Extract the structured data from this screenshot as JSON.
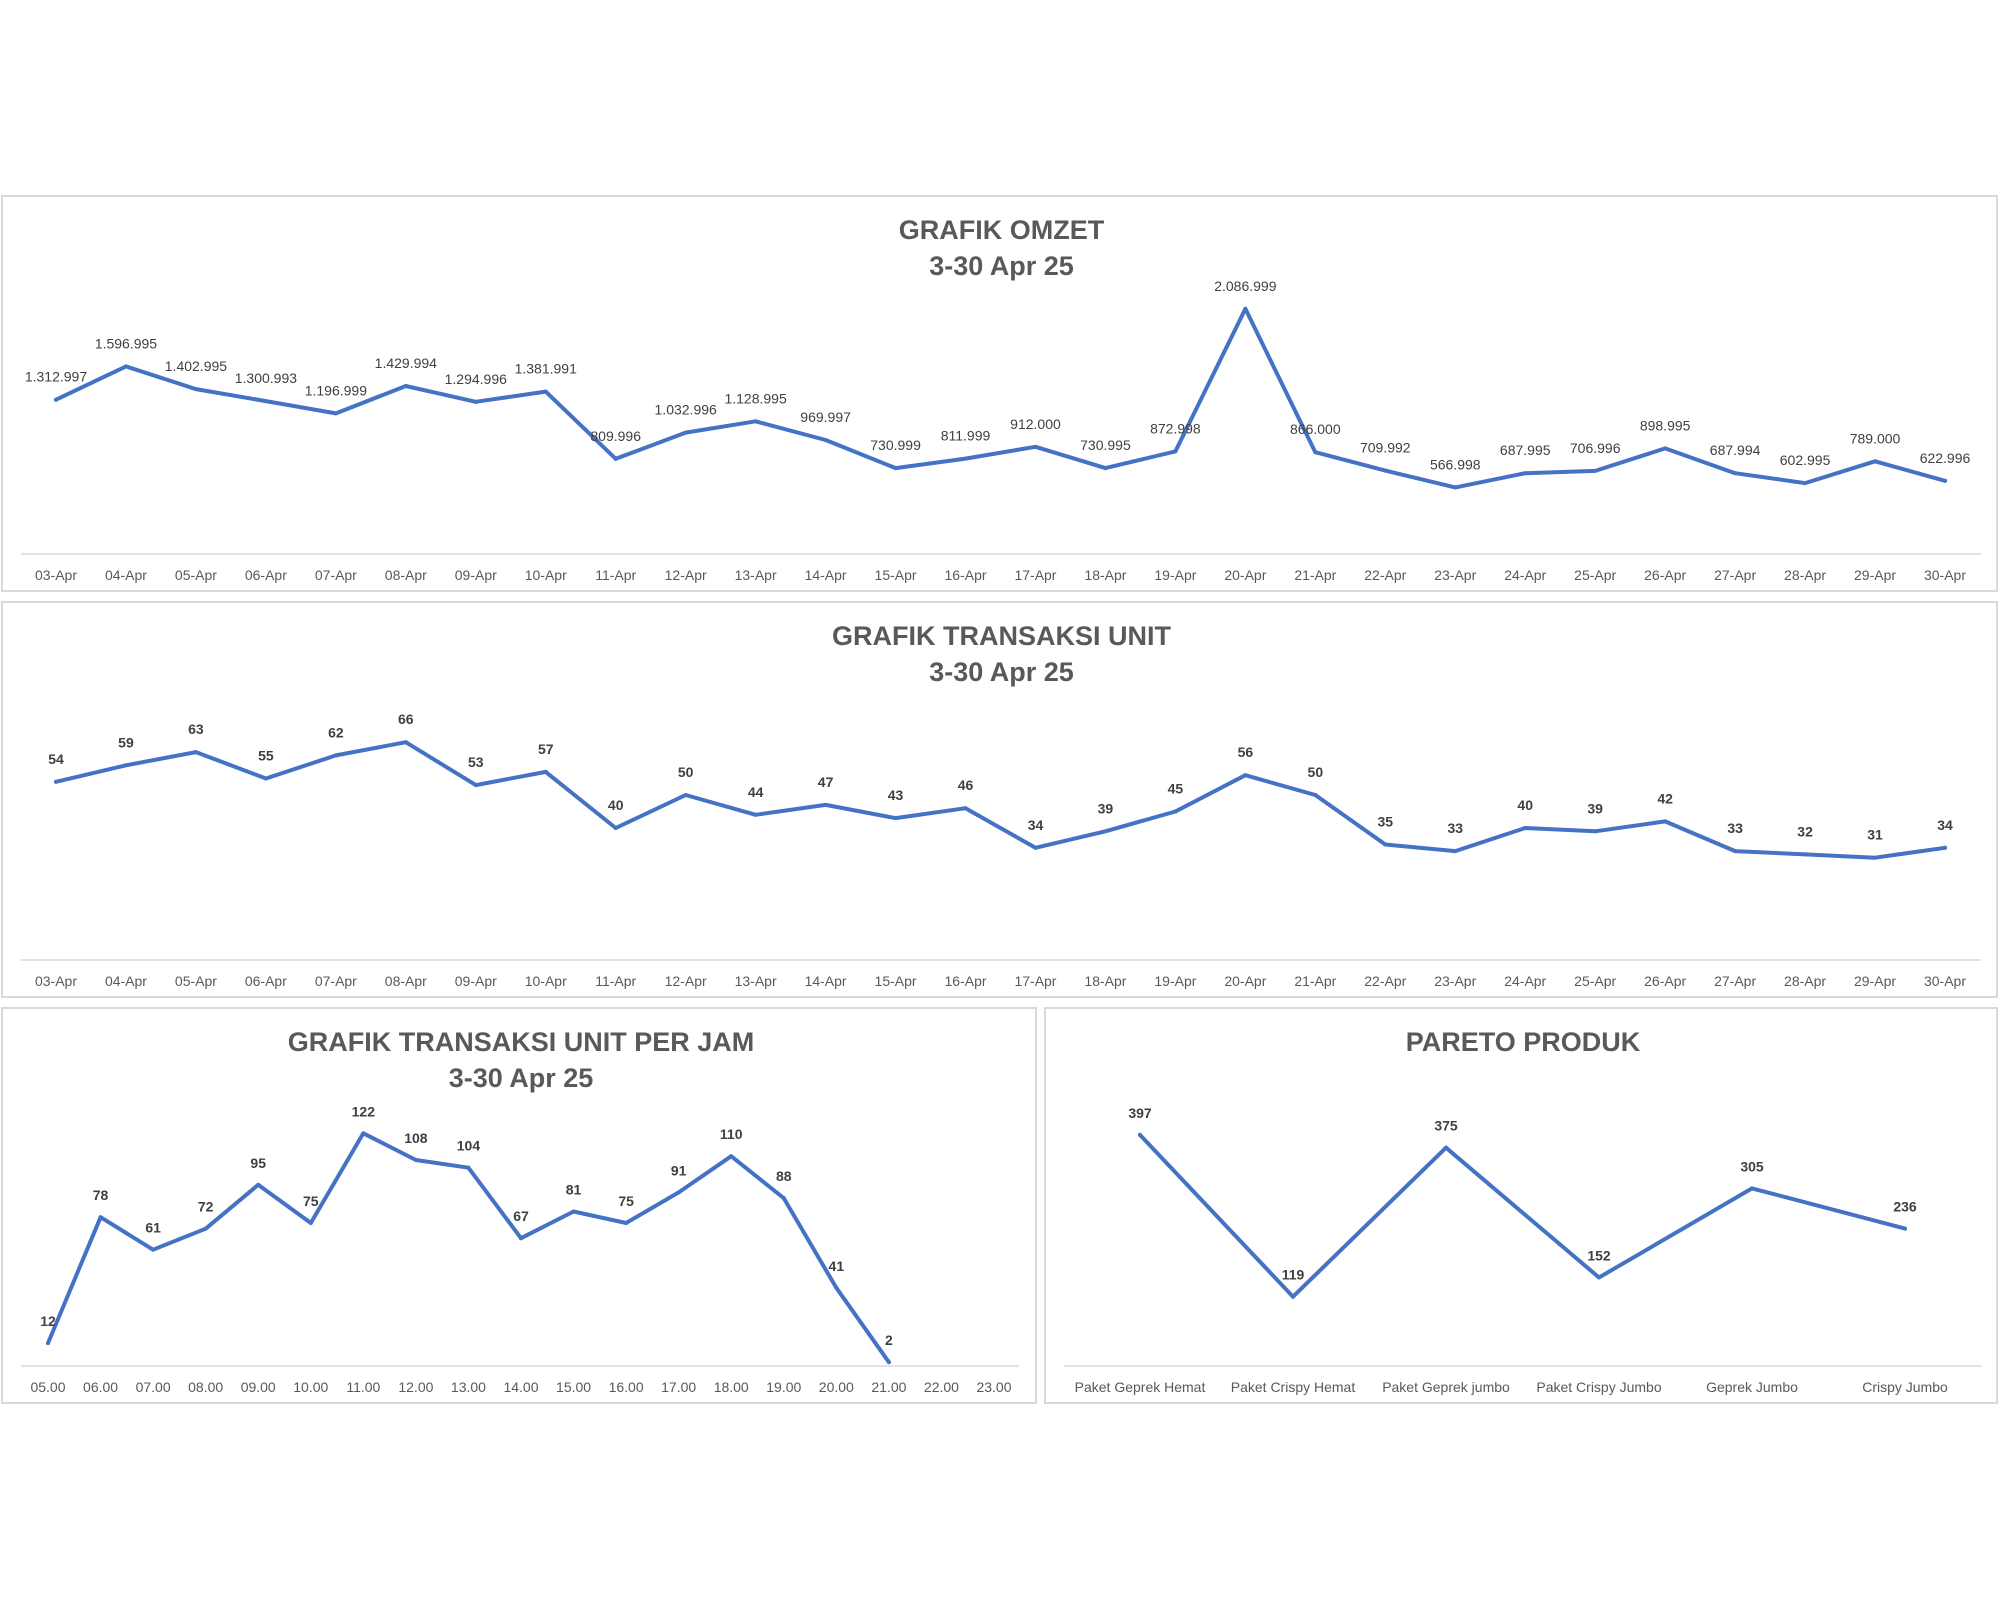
{
  "colors": {
    "series": "#4472c4",
    "text": "#595959",
    "axis": "#d9d9d9"
  },
  "chart_data": [
    {
      "id": "omzet",
      "type": "line",
      "title": "GRAFIK OMZET",
      "subtitle": "3-30 Apr 25",
      "categories": [
        "03-Apr",
        "04-Apr",
        "05-Apr",
        "06-Apr",
        "07-Apr",
        "08-Apr",
        "09-Apr",
        "10-Apr",
        "11-Apr",
        "12-Apr",
        "13-Apr",
        "14-Apr",
        "15-Apr",
        "16-Apr",
        "17-Apr",
        "18-Apr",
        "19-Apr",
        "20-Apr",
        "21-Apr",
        "22-Apr",
        "23-Apr",
        "24-Apr",
        "25-Apr",
        "26-Apr",
        "27-Apr",
        "28-Apr",
        "29-Apr",
        "30-Apr"
      ],
      "values": [
        1312997,
        1596995,
        1402995,
        1300993,
        1196999,
        1429994,
        1294996,
        1381991,
        809996,
        1032996,
        1128995,
        969997,
        730999,
        811999,
        912000,
        730995,
        872998,
        2086999,
        866000,
        709992,
        566998,
        687995,
        706996,
        898995,
        687994,
        602995,
        789000,
        622996
      ],
      "labels": [
        "1.312.997",
        "1.596.995",
        "1.402.995",
        "1.300.993",
        "1.196.999",
        "1.429.994",
        "1.294.996",
        "1.381.991",
        "809.996",
        "1.032.996",
        "1.128.995",
        "969.997",
        "730.999",
        "811.999",
        "912.000",
        "730.995",
        "872.998",
        "2.086.999",
        "866.000",
        "709.992",
        "566.998",
        "687.995",
        "706.996",
        "898.995",
        "687.994",
        "602.995",
        "789.000",
        "622.996"
      ],
      "legend": "none"
    },
    {
      "id": "unit",
      "type": "line",
      "title": "GRAFIK TRANSAKSI UNIT",
      "subtitle": "3-30 Apr 25",
      "categories": [
        "03-Apr",
        "04-Apr",
        "05-Apr",
        "06-Apr",
        "07-Apr",
        "08-Apr",
        "09-Apr",
        "10-Apr",
        "11-Apr",
        "12-Apr",
        "13-Apr",
        "14-Apr",
        "15-Apr",
        "16-Apr",
        "17-Apr",
        "18-Apr",
        "19-Apr",
        "20-Apr",
        "21-Apr",
        "22-Apr",
        "23-Apr",
        "24-Apr",
        "25-Apr",
        "26-Apr",
        "27-Apr",
        "28-Apr",
        "29-Apr",
        "30-Apr"
      ],
      "values": [
        54,
        59,
        63,
        55,
        62,
        66,
        53,
        57,
        40,
        50,
        44,
        47,
        43,
        46,
        34,
        39,
        45,
        56,
        50,
        35,
        33,
        40,
        39,
        42,
        33,
        32,
        31,
        34
      ],
      "legend": "none"
    },
    {
      "id": "jam",
      "type": "line",
      "title": "GRAFIK TRANSAKSI UNIT PER JAM",
      "subtitle": "3-30 Apr 25",
      "categories": [
        "05.00",
        "06.00",
        "07.00",
        "08.00",
        "09.00",
        "10.00",
        "11.00",
        "12.00",
        "13.00",
        "14.00",
        "15.00",
        "16.00",
        "17.00",
        "18.00",
        "19.00",
        "20.00",
        "21.00",
        "22.00",
        "23.00"
      ],
      "values": [
        12,
        78,
        61,
        72,
        95,
        75,
        122,
        108,
        104,
        67,
        81,
        75,
        91,
        110,
        88,
        41,
        2,
        null,
        null
      ],
      "legend": "none"
    },
    {
      "id": "pareto",
      "type": "line",
      "title": "PARETO PRODUK",
      "subtitle": "",
      "categories": [
        "Paket Geprek Hemat",
        "Paket Crispy Hemat",
        "Paket Geprek jumbo",
        "Paket Crispy Jumbo",
        "Geprek Jumbo",
        "Crispy Jumbo"
      ],
      "values": [
        397,
        119,
        375,
        152,
        305,
        236
      ],
      "legend": "none"
    }
  ]
}
